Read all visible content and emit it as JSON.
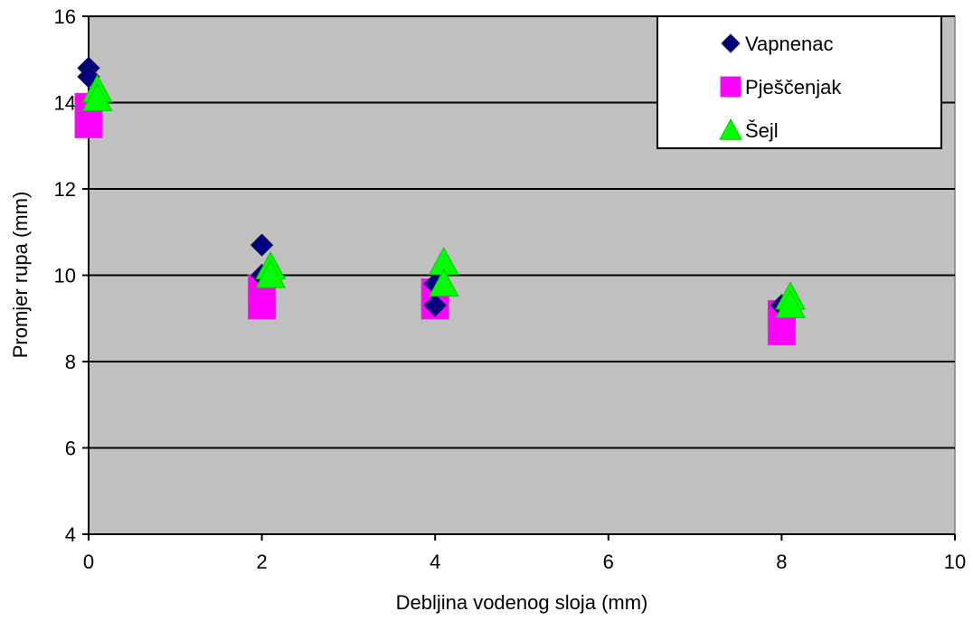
{
  "chart_data": {
    "type": "scatter",
    "title": "",
    "xlabel": "Debljina vodenog sloja (mm)",
    "ylabel": "Promjer rupa (mm)",
    "xlim": [
      0,
      10
    ],
    "ylim": [
      4,
      16
    ],
    "xticks": [
      0,
      2,
      4,
      6,
      8,
      10
    ],
    "yticks": [
      4,
      6,
      8,
      10,
      12,
      14,
      16
    ],
    "grid": "horizontal major gridlines",
    "legend_position": "top-right",
    "plot_background": "#c0c0c0",
    "series": [
      {
        "name": "Vapnenac",
        "marker": "diamond",
        "color": "#000080",
        "points": [
          {
            "x": 0,
            "y": 14.8
          },
          {
            "x": 0,
            "y": 14.6
          },
          {
            "x": 2,
            "y": 10.7
          },
          {
            "x": 2,
            "y": 10.0
          },
          {
            "x": 4,
            "y": 9.8
          },
          {
            "x": 4,
            "y": 9.3
          },
          {
            "x": 8,
            "y": 9.3
          }
        ]
      },
      {
        "name": "Pješčenjak",
        "marker": "square",
        "color": "#ff00ff",
        "points": [
          {
            "x": 0,
            "y": 13.9
          },
          {
            "x": 0,
            "y": 13.5
          },
          {
            "x": 2,
            "y": 9.7
          },
          {
            "x": 2,
            "y": 9.3
          },
          {
            "x": 4,
            "y": 9.6
          },
          {
            "x": 4,
            "y": 9.3
          },
          {
            "x": 8,
            "y": 9.1
          },
          {
            "x": 8,
            "y": 8.7
          }
        ]
      },
      {
        "name": "Šejl",
        "marker": "triangle",
        "color": "#00ff00",
        "points": [
          {
            "x": 0.1,
            "y": 14.3
          },
          {
            "x": 0.1,
            "y": 14.1
          },
          {
            "x": 2.1,
            "y": 10.2
          },
          {
            "x": 2.1,
            "y": 10.0
          },
          {
            "x": 4.1,
            "y": 10.3
          },
          {
            "x": 4.1,
            "y": 9.8
          },
          {
            "x": 8.1,
            "y": 9.5
          },
          {
            "x": 8.1,
            "y": 9.3
          }
        ]
      }
    ]
  }
}
